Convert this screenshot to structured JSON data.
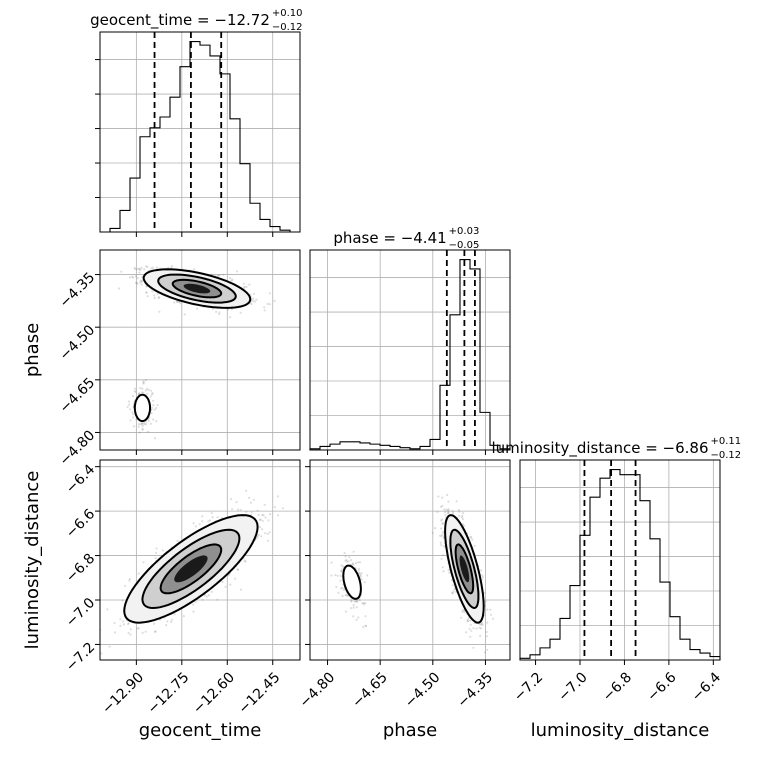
{
  "chart_data": {
    "type": "corner",
    "parameters": [
      {
        "key": "geocent_time",
        "label": "geocent_time",
        "title_main": "geocent_time = −12.72",
        "title_sup": "+0.10",
        "title_sub": "−0.12",
        "range": [
          -13.02,
          -12.36
        ],
        "ticks": [
          -12.9,
          -12.75,
          -12.6,
          -12.45
        ],
        "tick_labels": [
          "−12.90",
          "−12.75",
          "−12.60",
          "−12.45"
        ],
        "quantiles": [
          -12.84,
          -12.72,
          -12.62
        ],
        "hist_edges": [
          -13.02,
          -12.987,
          -12.954,
          -12.921,
          -12.888,
          -12.855,
          -12.822,
          -12.789,
          -12.756,
          -12.723,
          -12.69,
          -12.657,
          -12.624,
          -12.591,
          -12.558,
          -12.525,
          -12.492,
          -12.459,
          -12.426,
          -12.393,
          -12.36
        ],
        "hist_counts": [
          0,
          2,
          12,
          30,
          53,
          58,
          64,
          75,
          92,
          106,
          104,
          98,
          88,
          63,
          38,
          16,
          7,
          3,
          1,
          0
        ]
      },
      {
        "key": "phase",
        "label": "phase",
        "title_main": "phase = −4.41",
        "title_sup": "+0.03",
        "title_sub": "−0.05",
        "range": [
          -4.85,
          -4.28
        ],
        "ticks": [
          -4.8,
          -4.65,
          -4.5,
          -4.35
        ],
        "tick_labels": [
          "−4.80",
          "−4.65",
          "−4.50",
          "−4.35"
        ],
        "quantiles": [
          -4.46,
          -4.41,
          -4.38
        ],
        "hist_edges": [
          -4.85,
          -4.8215,
          -4.793,
          -4.7645,
          -4.736,
          -4.7075,
          -4.679,
          -4.6505,
          -4.622,
          -4.5935,
          -4.565,
          -4.5365,
          -4.508,
          -4.4795,
          -4.451,
          -4.4225,
          -4.394,
          -4.3655,
          -4.337,
          -4.3085,
          -4.28
        ],
        "hist_counts": [
          1,
          3,
          5,
          7,
          7,
          6,
          5,
          4,
          3,
          2,
          1,
          3,
          9,
          55,
          115,
          162,
          154,
          32,
          4,
          1
        ]
      },
      {
        "key": "luminosity_distance",
        "label": "luminosity_distance",
        "title_main": "luminosity_distance = −6.86",
        "title_sup": "+0.11",
        "title_sub": "−0.12",
        "range": [
          -7.27,
          -6.37
        ],
        "ticks": [
          -7.2,
          -7.0,
          -6.8,
          -6.6,
          -6.4
        ],
        "tick_labels": [
          "−7.2",
          "−7.0",
          "−6.8",
          "−6.6",
          "−6.4"
        ],
        "quantiles": [
          -6.98,
          -6.86,
          -6.75
        ],
        "hist_edges": [
          -7.27,
          -7.225,
          -7.18,
          -7.135,
          -7.09,
          -7.045,
          -7.0,
          -6.955,
          -6.91,
          -6.865,
          -6.82,
          -6.775,
          -6.73,
          -6.685,
          -6.64,
          -6.595,
          -6.55,
          -6.505,
          -6.46,
          -6.415,
          -6.37
        ],
        "hist_counts": [
          1,
          3,
          7,
          12,
          24,
          43,
          72,
          94,
          105,
          110,
          107,
          107,
          92,
          70,
          45,
          25,
          12,
          6,
          4,
          2
        ]
      }
    ],
    "density_2d": [
      {
        "x": "geocent_time",
        "y": "phase",
        "modes": [
          {
            "center": [
              -12.7,
              -4.39
            ],
            "spread": [
              0.08,
              0.025
            ],
            "corr": -0.55,
            "weight": 0.88
          },
          {
            "center": [
              -12.88,
              -4.73
            ],
            "spread": [
              0.02,
              0.03
            ],
            "corr": 0.0,
            "weight": 0.12
          }
        ]
      },
      {
        "x": "geocent_time",
        "y": "luminosity_distance",
        "modes": [
          {
            "center": [
              -12.72,
              -6.86
            ],
            "spread": [
              0.1,
              0.11
            ],
            "corr": 0.78,
            "weight": 1.0
          }
        ]
      },
      {
        "x": "phase",
        "y": "luminosity_distance",
        "modes": [
          {
            "center": [
              -4.41,
              -6.86
            ],
            "spread": [
              0.025,
              0.11
            ],
            "corr": -0.7,
            "weight": 0.88
          },
          {
            "center": [
              -4.73,
              -6.92
            ],
            "spread": [
              0.02,
              0.06
            ],
            "corr": -0.4,
            "weight": 0.12
          }
        ]
      }
    ],
    "contour_levels_sigma": [
      1.0,
      1.6,
      2.2
    ],
    "grid": true
  }
}
